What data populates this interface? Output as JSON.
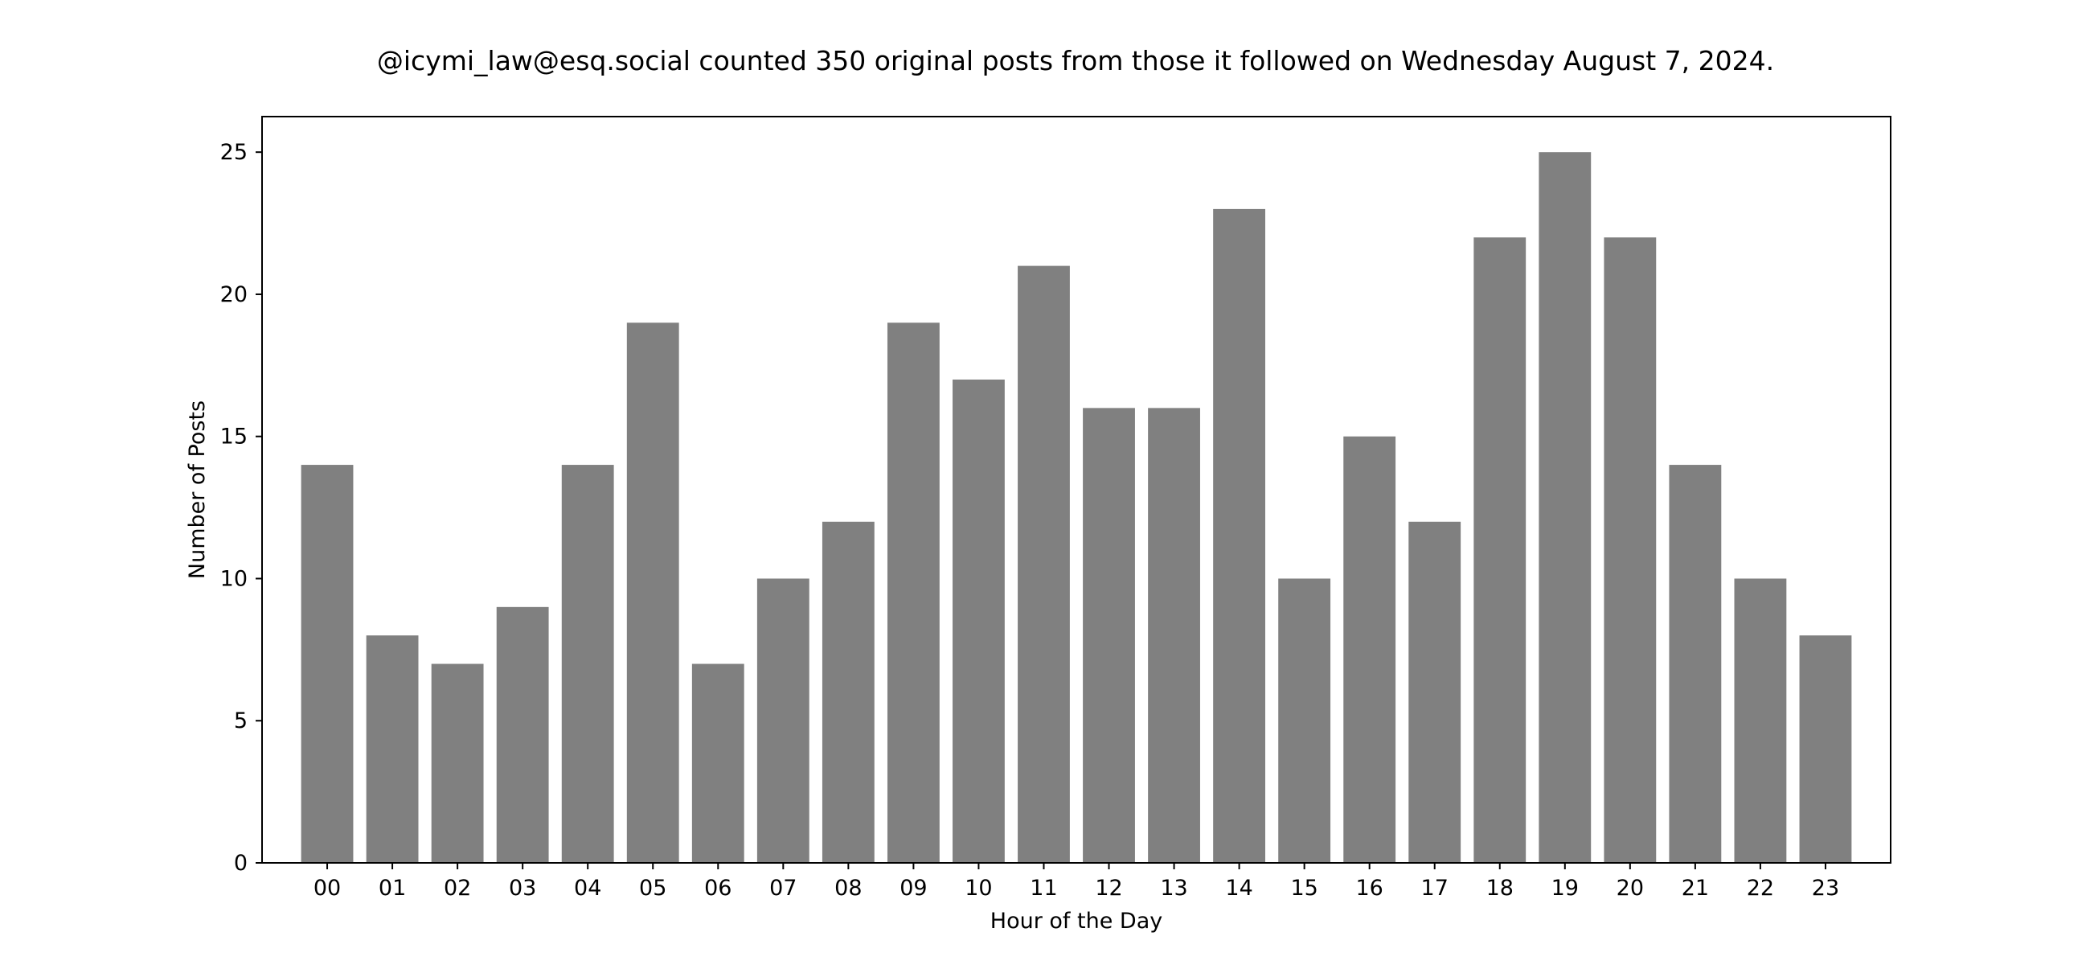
{
  "chart_data": {
    "type": "bar",
    "title": "@icymi_law@esq.social counted 350 original posts from those it followed on Wednesday August 7, 2024.",
    "xlabel": "Hour of the Day",
    "ylabel": "Number of Posts",
    "categories": [
      "00",
      "01",
      "02",
      "03",
      "04",
      "05",
      "06",
      "07",
      "08",
      "09",
      "10",
      "11",
      "12",
      "13",
      "14",
      "15",
      "16",
      "17",
      "18",
      "19",
      "20",
      "21",
      "22",
      "23"
    ],
    "values": [
      14,
      8,
      7,
      9,
      14,
      19,
      7,
      10,
      12,
      19,
      17,
      21,
      16,
      16,
      23,
      10,
      15,
      12,
      22,
      25,
      22,
      14,
      10,
      8
    ],
    "ylim": [
      0,
      26.25
    ],
    "yticks": [
      0,
      5,
      10,
      15,
      20,
      25
    ],
    "grid": false,
    "bar_color": "#808080"
  }
}
